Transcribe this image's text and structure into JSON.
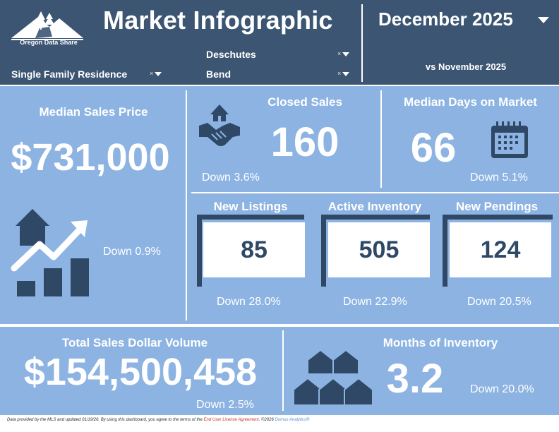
{
  "header": {
    "logo_text": "Oregon Data Share",
    "title": "Market Infographic",
    "period": "December 2025",
    "comparison": "vs November 2025",
    "filters": {
      "property_type": "Single Family Residence",
      "county": "Deschutes",
      "city": "Bend",
      "clear_glyph": "×"
    }
  },
  "metrics": {
    "median_sales_price": {
      "label": "Median Sales Price",
      "value": "$731,000",
      "change": "Down 0.9%"
    },
    "closed_sales": {
      "label": "Closed Sales",
      "value": "160",
      "change": "Down 3.6%"
    },
    "median_days": {
      "label": "Median Days on Market",
      "value": "66",
      "change": "Down 5.1%"
    },
    "new_listings": {
      "label": "New Listings",
      "value": "85",
      "change": "Down 28.0%"
    },
    "active_inventory": {
      "label": "Active Inventory",
      "value": "505",
      "change": "Down 22.9%"
    },
    "new_pendings": {
      "label": "New Pendings",
      "value": "124",
      "change": "Down 20.5%"
    },
    "total_volume": {
      "label": "Total Sales Dollar Volume",
      "value": "$154,500,458",
      "change": "Down 2.5%"
    },
    "months_inventory": {
      "label": "Months of Inventory",
      "value": "3.2",
      "change": "Down 20.0%"
    }
  },
  "footer": {
    "text": "Data provided by the MLS and updated 01/19/26.  By using this dashboard, you agree to the terms of the",
    "link": "End User License Agreement",
    "copyright": ".  ©2026",
    "brand": "Domus Analytics®"
  },
  "colors": {
    "header_bg": "#3b5573",
    "panel_bg": "#8cb3e2",
    "icon_dark": "#2e4866",
    "text": "#ffffff"
  },
  "icons": [
    "mountain-logo-icon",
    "handshake-icon",
    "calendar-icon",
    "house-growth-chart-icon",
    "houses-icon"
  ]
}
